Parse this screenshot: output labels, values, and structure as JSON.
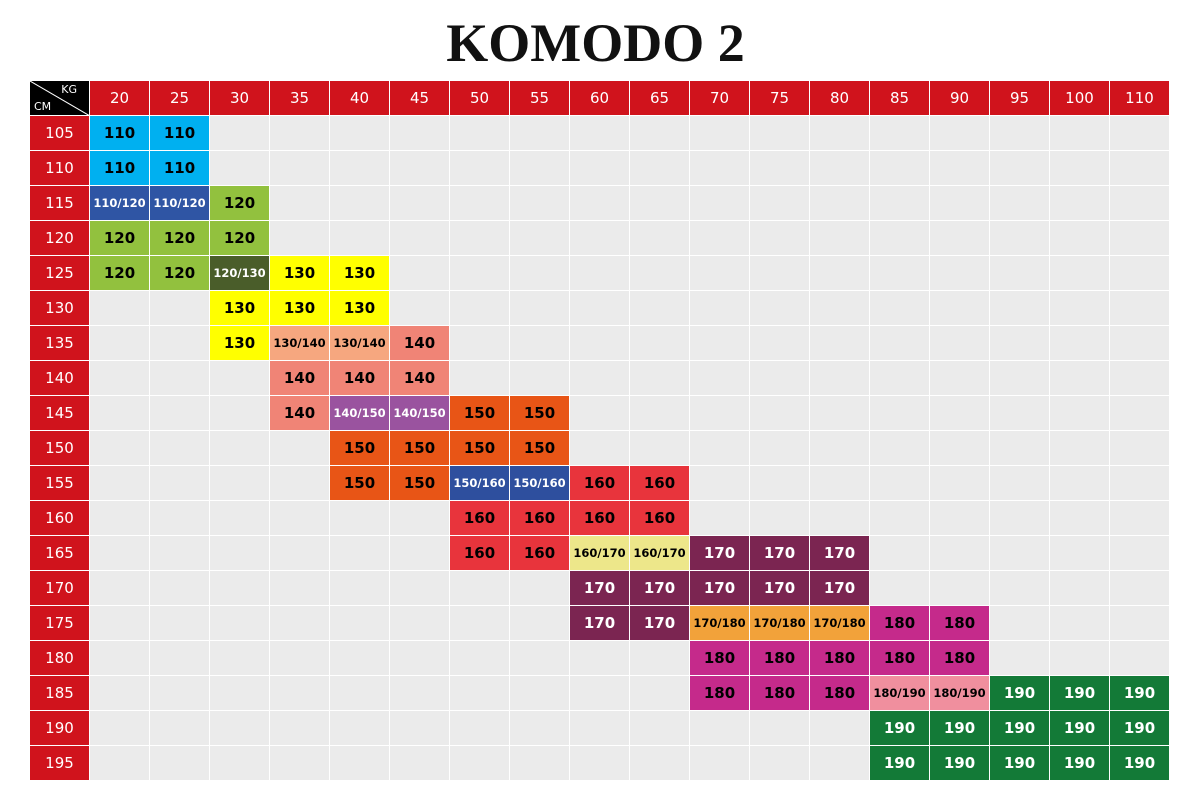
{
  "title": "KOMODO 2",
  "corner": {
    "top": "KG",
    "bottom": "CM"
  },
  "columns": [
    "20",
    "25",
    "30",
    "35",
    "40",
    "45",
    "50",
    "55",
    "60",
    "65",
    "70",
    "75",
    "80",
    "85",
    "90",
    "95",
    "100",
    "110"
  ],
  "rows": [
    {
      "label": "105",
      "cells": [
        "110",
        "110",
        null,
        null,
        null,
        null,
        null,
        null,
        null,
        null,
        null,
        null,
        null,
        null,
        null,
        null,
        null,
        null
      ]
    },
    {
      "label": "110",
      "cells": [
        "110",
        "110",
        null,
        null,
        null,
        null,
        null,
        null,
        null,
        null,
        null,
        null,
        null,
        null,
        null,
        null,
        null,
        null
      ]
    },
    {
      "label": "115",
      "cells": [
        "110/120",
        "110/120",
        "120",
        null,
        null,
        null,
        null,
        null,
        null,
        null,
        null,
        null,
        null,
        null,
        null,
        null,
        null,
        null
      ]
    },
    {
      "label": "120",
      "cells": [
        "120",
        "120",
        "120",
        null,
        null,
        null,
        null,
        null,
        null,
        null,
        null,
        null,
        null,
        null,
        null,
        null,
        null,
        null
      ]
    },
    {
      "label": "125",
      "cells": [
        "120",
        "120",
        "120/130",
        "130",
        "130",
        null,
        null,
        null,
        null,
        null,
        null,
        null,
        null,
        null,
        null,
        null,
        null,
        null
      ]
    },
    {
      "label": "130",
      "cells": [
        null,
        null,
        "130",
        "130",
        "130",
        null,
        null,
        null,
        null,
        null,
        null,
        null,
        null,
        null,
        null,
        null,
        null,
        null
      ]
    },
    {
      "label": "135",
      "cells": [
        null,
        null,
        "130",
        "130/140",
        "130/140",
        "140",
        null,
        null,
        null,
        null,
        null,
        null,
        null,
        null,
        null,
        null,
        null,
        null
      ]
    },
    {
      "label": "140",
      "cells": [
        null,
        null,
        null,
        "140",
        "140",
        "140",
        null,
        null,
        null,
        null,
        null,
        null,
        null,
        null,
        null,
        null,
        null,
        null
      ]
    },
    {
      "label": "145",
      "cells": [
        null,
        null,
        null,
        "140",
        "140/150",
        "140/150",
        "150",
        "150",
        null,
        null,
        null,
        null,
        null,
        null,
        null,
        null,
        null,
        null
      ]
    },
    {
      "label": "150",
      "cells": [
        null,
        null,
        null,
        null,
        "150",
        "150",
        "150",
        "150",
        null,
        null,
        null,
        null,
        null,
        null,
        null,
        null,
        null,
        null
      ]
    },
    {
      "label": "155",
      "cells": [
        null,
        null,
        null,
        null,
        "150",
        "150",
        "150/160",
        "150/160",
        "160",
        "160",
        null,
        null,
        null,
        null,
        null,
        null,
        null,
        null
      ]
    },
    {
      "label": "160",
      "cells": [
        null,
        null,
        null,
        null,
        null,
        null,
        "160",
        "160",
        "160",
        "160",
        null,
        null,
        null,
        null,
        null,
        null,
        null,
        null
      ]
    },
    {
      "label": "165",
      "cells": [
        null,
        null,
        null,
        null,
        null,
        null,
        "160",
        "160",
        "160/170",
        "160/170",
        "170",
        "170",
        "170",
        null,
        null,
        null,
        null,
        null
      ]
    },
    {
      "label": "170",
      "cells": [
        null,
        null,
        null,
        null,
        null,
        null,
        null,
        null,
        "170",
        "170",
        "170",
        "170",
        "170",
        null,
        null,
        null,
        null,
        null
      ]
    },
    {
      "label": "175",
      "cells": [
        null,
        null,
        null,
        null,
        null,
        null,
        null,
        null,
        "170",
        "170",
        "170/180",
        "170/180",
        "170/180",
        "180",
        "180",
        null,
        null,
        null
      ]
    },
    {
      "label": "180",
      "cells": [
        null,
        null,
        null,
        null,
        null,
        null,
        null,
        null,
        null,
        null,
        "180",
        "180",
        "180",
        "180",
        "180",
        null,
        null,
        null
      ]
    },
    {
      "label": "185",
      "cells": [
        null,
        null,
        null,
        null,
        null,
        null,
        null,
        null,
        null,
        null,
        "180",
        "180",
        "180",
        "180/190",
        "180/190",
        "190",
        "190",
        "190"
      ]
    },
    {
      "label": "190",
      "cells": [
        null,
        null,
        null,
        null,
        null,
        null,
        null,
        null,
        null,
        null,
        null,
        null,
        null,
        "190",
        "190",
        "190",
        "190",
        "190"
      ]
    },
    {
      "label": "195",
      "cells": [
        null,
        null,
        null,
        null,
        null,
        null,
        null,
        null,
        null,
        null,
        null,
        null,
        null,
        "190",
        "190",
        "190",
        "190",
        "190"
      ]
    }
  ],
  "size_colors": {
    "110": {
      "bg": "#00b0f0",
      "fg": "#000000"
    },
    "110/120": {
      "bg": "#2f55a4",
      "fg": "#ffffff"
    },
    "120": {
      "bg": "#92c13e",
      "fg": "#000000"
    },
    "120/130": {
      "bg": "#4a5d2a",
      "fg": "#ffffff"
    },
    "130": {
      "bg": "#ffff00",
      "fg": "#000000"
    },
    "130/140": {
      "bg": "#f6a77f",
      "fg": "#000000"
    },
    "140": {
      "bg": "#f08476",
      "fg": "#000000"
    },
    "140/150": {
      "bg": "#9a539f",
      "fg": "#ffffff"
    },
    "150": {
      "bg": "#e85516",
      "fg": "#000000"
    },
    "150/160": {
      "bg": "#2e4f9e",
      "fg": "#ffffff"
    },
    "160": {
      "bg": "#e8343c",
      "fg": "#000000"
    },
    "160/170": {
      "bg": "#ede78a",
      "fg": "#000000"
    },
    "170": {
      "bg": "#7b2551",
      "fg": "#ffffff"
    },
    "170/180": {
      "bg": "#f2a23a",
      "fg": "#000000"
    },
    "180": {
      "bg": "#c52a8b",
      "fg": "#000000"
    },
    "180/190": {
      "bg": "#f08f9e",
      "fg": "#000000"
    },
    "190": {
      "bg": "#137a37",
      "fg": "#ffffff"
    }
  }
}
